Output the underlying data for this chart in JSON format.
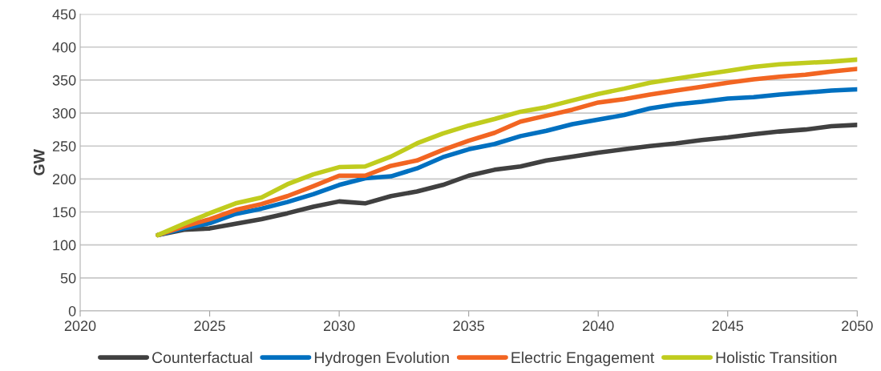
{
  "chart_data": {
    "type": "line",
    "ylabel": "GW",
    "x": [
      2023,
      2024,
      2025,
      2026,
      2027,
      2028,
      2029,
      2030,
      2031,
      2032,
      2033,
      2034,
      2035,
      2036,
      2037,
      2038,
      2039,
      2040,
      2041,
      2042,
      2043,
      2044,
      2045,
      2046,
      2047,
      2048,
      2049,
      2050
    ],
    "xlim": [
      2020,
      2050
    ],
    "xticks": [
      2020,
      2025,
      2030,
      2035,
      2040,
      2045,
      2050
    ],
    "ylim": [
      0,
      450
    ],
    "yticks": [
      0,
      50,
      100,
      150,
      200,
      250,
      300,
      350,
      400,
      450
    ],
    "grid": "y",
    "legend": "bottom",
    "marker": "none",
    "line_style": "solid",
    "series": [
      {
        "name": "Counterfactual",
        "color": "#404040",
        "values": [
          115,
          123,
          125,
          132,
          139,
          148,
          158,
          166,
          163,
          174,
          181,
          191,
          205,
          214,
          219,
          228,
          234,
          240,
          245,
          250,
          254,
          259,
          263,
          268,
          272,
          275,
          280,
          282
        ]
      },
      {
        "name": "Hydrogen Evolution",
        "color": "#0070c0",
        "values": [
          115,
          125,
          133,
          147,
          155,
          165,
          177,
          191,
          201,
          204,
          216,
          233,
          245,
          253,
          265,
          273,
          283,
          290,
          297,
          307,
          313,
          317,
          322,
          324,
          328,
          331,
          334,
          336
        ]
      },
      {
        "name": "Electric Engagement",
        "color": "#f26522",
        "values": [
          115,
          128,
          139,
          153,
          162,
          174,
          189,
          205,
          205,
          220,
          228,
          244,
          258,
          270,
          287,
          296,
          305,
          316,
          321,
          328,
          334,
          340,
          346,
          351,
          355,
          358,
          363,
          367
        ]
      },
      {
        "name": "Holistic Transition",
        "color": "#c0cc1e",
        "values": [
          115,
          132,
          148,
          163,
          172,
          192,
          207,
          218,
          219,
          234,
          254,
          269,
          281,
          291,
          302,
          309,
          319,
          329,
          337,
          346,
          352,
          358,
          364,
          370,
          374,
          376,
          378,
          381
        ]
      }
    ]
  }
}
